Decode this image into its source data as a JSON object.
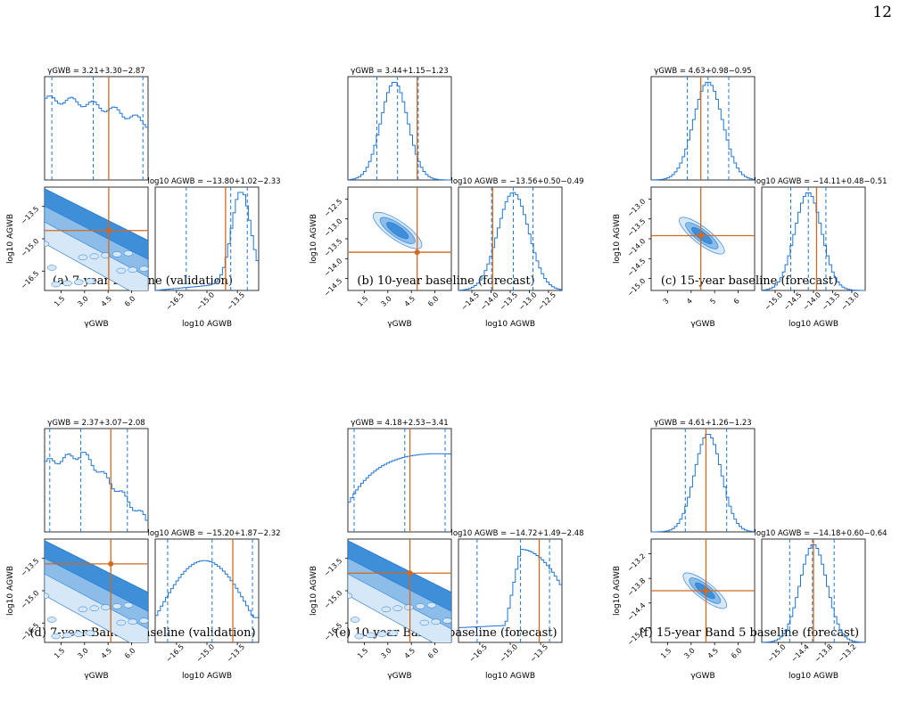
{
  "page_number": "12",
  "colors": {
    "hist": "#1f77d8",
    "truth": "#d2691e",
    "fill_light": "#d6e8f8",
    "fill_mid": "#8cbde9",
    "fill_dark": "#3f8ed8"
  },
  "panels": [
    {
      "caption": "(a) 7-year baseline (validation)",
      "gamma_label": "γGWB = 3.21+3.30−2.87",
      "amp_label": "log10 AGWB = −13.80+1.02−2.33",
      "ylabel": "log10 AGWB",
      "xlabel_gamma": "γGWB",
      "xlabel_amp": "log10 AGWB",
      "gamma_ticks": [
        "1.5",
        "3.0",
        "4.5",
        "6.0"
      ],
      "ycorner_ticks": [
        "−13.5",
        "−15.0",
        "−16.5"
      ],
      "amp_ticks": [
        "−16.5",
        "−15.0",
        "−13.5"
      ]
    },
    {
      "caption": "(b) 10-year baseline (forecast)",
      "gamma_label": "γGWB = 3.44+1.15−1.23",
      "amp_label": "log10 AGWB = −13.56+0.50−0.49",
      "ylabel": "log10 AGWB",
      "xlabel_gamma": "γGWB",
      "xlabel_amp": "log10 AGWB",
      "gamma_ticks": [
        "1.5",
        "3.0",
        "4.5",
        "6.0"
      ],
      "ycorner_ticks": [
        "−12.5",
        "−13.0",
        "−13.5",
        "−14.0",
        "−14.5"
      ],
      "amp_ticks": [
        "−14.5",
        "−14.0",
        "−13.5",
        "−13.0",
        "−12.5"
      ]
    },
    {
      "caption": "(c) 15-year baseline (forecast)",
      "gamma_label": "γGWB = 4.63+0.98−0.95",
      "amp_label": "log10 AGWB = −14.11+0.48−0.51",
      "ylabel": "log10 AGWB",
      "xlabel_gamma": "γGWB",
      "xlabel_amp": "log10 AGWB",
      "gamma_ticks": [
        "3",
        "4",
        "5",
        "6"
      ],
      "ycorner_ticks": [
        "−13.0",
        "−13.5",
        "−14.0",
        "−14.5",
        "−15.0"
      ],
      "amp_ticks": [
        "−15.0",
        "−14.5",
        "−14.0",
        "−13.5",
        "−13.0"
      ]
    },
    {
      "caption": "(d) 7-year Band 5 baseline (validation)",
      "gamma_label": "γGWB = 2.37+3.07−2.08",
      "amp_label": "log10 AGWB = −15.20+1.87−2.32",
      "ylabel": "log10 AGWB",
      "xlabel_gamma": "γGWB",
      "xlabel_amp": "log10 AGWB",
      "gamma_ticks": [
        "1.5",
        "3.0",
        "4.5",
        "6.0"
      ],
      "ycorner_ticks": [
        "−13.5",
        "−15.0",
        "−16.5"
      ],
      "amp_ticks": [
        "−16.5",
        "−15.0",
        "−13.5"
      ]
    },
    {
      "caption": "(e) 10-year Band 5 baseline (forecast)",
      "gamma_label": "γGWB = 4.18+2.53−3.41",
      "amp_label": "log10 AGWB = −14.72+1.49−2.48",
      "ylabel": "log10 AGWB",
      "xlabel_gamma": "γGWB",
      "xlabel_amp": "log10 AGWB",
      "gamma_ticks": [
        "1.5",
        "3.0",
        "4.5",
        "6.0"
      ],
      "ycorner_ticks": [
        "−13.5",
        "−15.0",
        "−16.5"
      ],
      "amp_ticks": [
        "−16.5",
        "−15.0",
        "−13.5"
      ]
    },
    {
      "caption": "(f) 15-year Band 5 baseline (forecast)",
      "gamma_label": "γGWB = 4.61+1.26−1.23",
      "amp_label": "log10 AGWB = −14.18+0.60−0.64",
      "ylabel": "log10 AGWB",
      "xlabel_gamma": "γGWB",
      "xlabel_amp": "log10 AGWB",
      "gamma_ticks": [
        "1.5",
        "3.0",
        "4.5",
        "6.0"
      ],
      "ycorner_ticks": [
        "−13.2",
        "−13.8",
        "−14.4",
        "−15.0"
      ],
      "amp_ticks": [
        "−15.0",
        "−14.4",
        "−13.8",
        "−13.2"
      ]
    }
  ]
}
